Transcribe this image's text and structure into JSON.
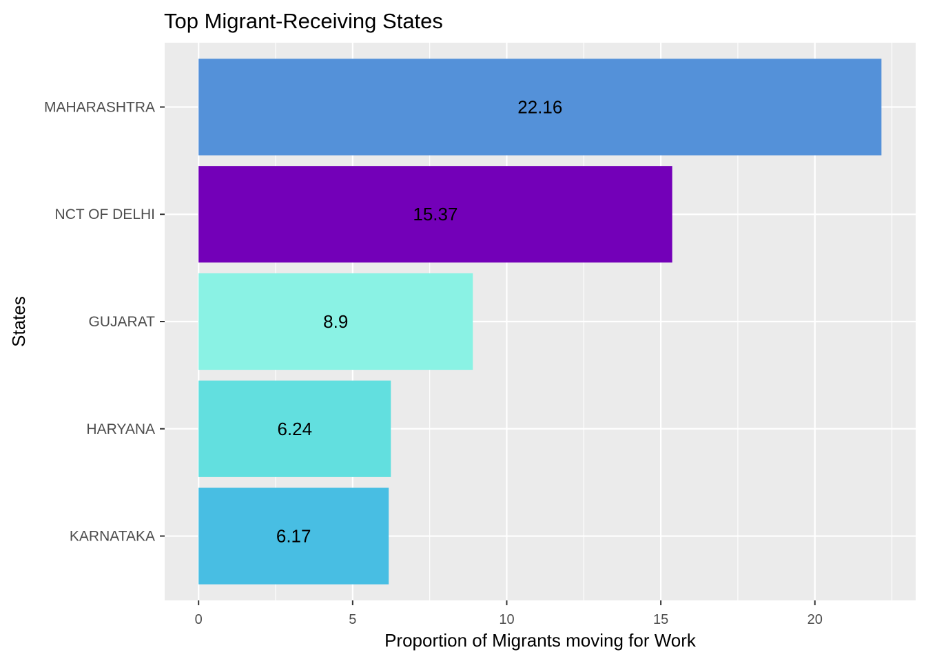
{
  "chart_data": {
    "type": "bar",
    "orientation": "horizontal",
    "title": "Top Migrant-Receiving States",
    "xlabel": "Proportion of Migrants moving for Work",
    "ylabel": "States",
    "categories": [
      "MAHARASHTRA",
      "NCT OF DELHI",
      "GUJARAT",
      "HARYANA",
      "KARNATAKA"
    ],
    "values": [
      22.16,
      15.37,
      8.9,
      6.24,
      6.17
    ],
    "value_labels": [
      "22.16",
      "15.37",
      "8.9",
      "6.24",
      "6.17"
    ],
    "colors": [
      "#5491d9",
      "#7300b8",
      "#8af2e4",
      "#62dfdf",
      "#48bee3"
    ],
    "x_ticks": [
      0,
      5,
      10,
      15,
      20
    ],
    "x_tick_labels": [
      "0",
      "5",
      "10",
      "15",
      "20"
    ],
    "xlim": [
      -1.1,
      23.27
    ],
    "grid": true,
    "legend": "none"
  },
  "theme": {
    "panel_bg": "#ebebeb",
    "grid_color": "#ffffff",
    "tick_color": "#333333"
  }
}
